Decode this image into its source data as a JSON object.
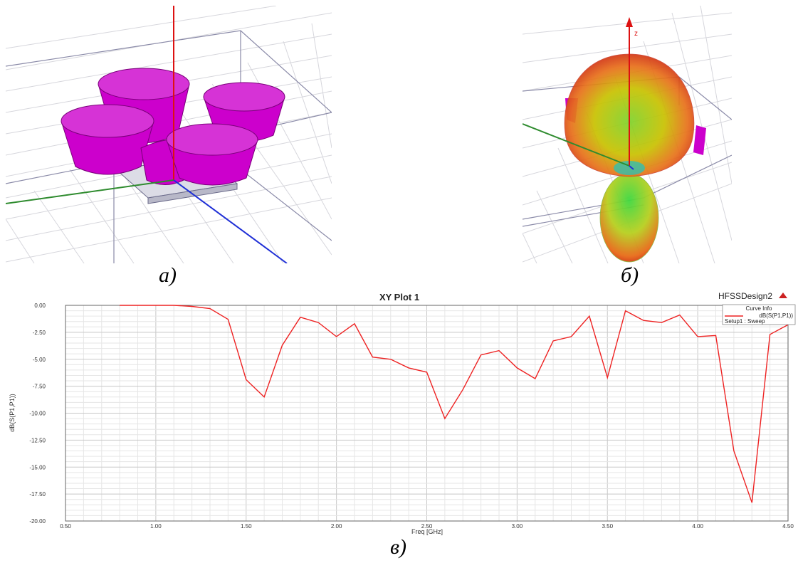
{
  "figure": {
    "captions": {
      "a": "а)",
      "b": "б)",
      "c": "в)"
    },
    "model_view": {
      "object_color": "#cc00cc",
      "axis_colors": {
        "x": "#2e8b2e",
        "y": "#1f2fd6",
        "z": "#dd1111"
      }
    },
    "pattern_view": {
      "z_axis_label": "z"
    }
  },
  "chart_data": {
    "type": "line",
    "title": "XY Plot 1",
    "design_label": "HFSSDesign2",
    "xlabel": "Freq [GHz]",
    "ylabel": "dB(S(P1,P1))",
    "xlim": [
      0.5,
      4.5
    ],
    "ylim": [
      -20,
      0
    ],
    "xticks": [
      "0.50",
      "1.00",
      "1.50",
      "2.00",
      "2.50",
      "3.00",
      "3.50",
      "4.00",
      "4.50"
    ],
    "yticks": [
      "0.00",
      "-2.50",
      "-5.00",
      "-7.50",
      "-10.00",
      "-12.50",
      "-15.00",
      "-17.50",
      "-20.00"
    ],
    "grid": true,
    "legend": {
      "title": "Curve Info",
      "entry": "dB(S(P1,P1))",
      "sub": "Setup1 : Sweep",
      "placement": "top-right"
    },
    "series": [
      {
        "name": "dB(S(P1,P1))",
        "color": "#ee2222",
        "x": [
          0.8,
          0.9,
          1.0,
          1.1,
          1.2,
          1.3,
          1.4,
          1.5,
          1.6,
          1.7,
          1.8,
          1.9,
          2.0,
          2.1,
          2.2,
          2.3,
          2.4,
          2.5,
          2.6,
          2.7,
          2.8,
          2.9,
          3.0,
          3.1,
          3.2,
          3.3,
          3.4,
          3.5,
          3.6,
          3.7,
          3.8,
          3.9,
          4.0,
          4.1,
          4.2,
          4.3,
          4.4,
          4.5
        ],
        "y": [
          0,
          0,
          0,
          0,
          -0.1,
          -0.3,
          -1.3,
          -6.9,
          -8.5,
          -3.7,
          -1.1,
          -1.6,
          -2.9,
          -1.7,
          -4.8,
          -5.0,
          -5.8,
          -6.2,
          -10.5,
          -7.8,
          -4.6,
          -4.2,
          -5.8,
          -6.8,
          -3.3,
          -2.9,
          -1.0,
          -6.7,
          -0.5,
          -1.4,
          -1.6,
          -0.9,
          -2.9,
          -2.8,
          -13.5,
          -18.3,
          -2.7,
          -1.8
        ]
      }
    ]
  }
}
